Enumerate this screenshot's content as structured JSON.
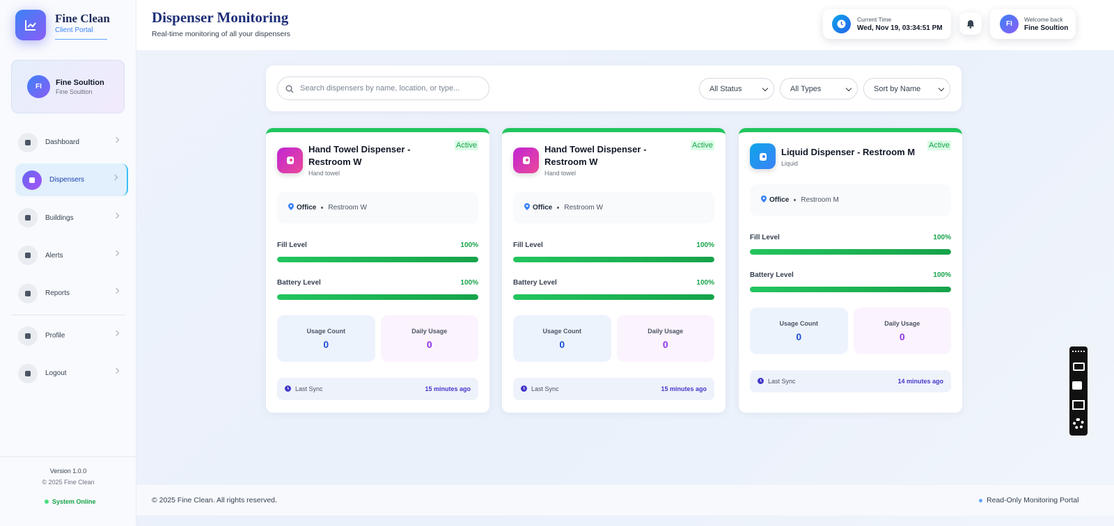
{
  "sidebar": {
    "brand": "Fine Clean",
    "brand_sub": "Client Portal",
    "user": {
      "initials": "FI",
      "name": "Fine Soultion",
      "org": "Fine Soultion"
    },
    "nav": [
      {
        "label": "Dashboard"
      },
      {
        "label": "Dispensers",
        "active": true
      },
      {
        "label": "Buildings"
      },
      {
        "label": "Alerts"
      },
      {
        "label": "Reports"
      }
    ],
    "nav_bottom": [
      {
        "label": "Profile"
      },
      {
        "label": "Logout"
      }
    ],
    "footer": {
      "version": "Version 1.0.0",
      "copyright": "© 2025 Fine Clean",
      "status": "System Online"
    }
  },
  "header": {
    "title": "Dispenser Monitoring",
    "subtitle": "Real-time monitoring of all your dispensers",
    "time_label": "Current Time",
    "time": "Wed, Nov 19, 03:34:51 PM",
    "welcome": "Welcome back",
    "user_initials": "FI",
    "user_name": "Fine Soultion"
  },
  "filters": {
    "search_placeholder": "Search dispensers by name, location, or type...",
    "status": "All Status",
    "types": "All Types",
    "sort": "Sort by Name"
  },
  "labels": {
    "fill": "Fill Level",
    "battery": "Battery Level",
    "usage": "Usage Count",
    "daily": "Daily Usage",
    "sync": "Last Sync"
  },
  "cards": [
    {
      "name": "Hand Towel Dispenser - Restroom W",
      "type": "Hand towel",
      "status": "Active",
      "building": "Office",
      "room": "Restroom W",
      "fill_level": {
        "value": 100,
        "label": "100%"
      },
      "battery_level": {
        "value": 100,
        "label": "100%"
      },
      "usage_count": 0,
      "daily_usage": 0,
      "last_sync": "15 minutes ago",
      "icon_gradient": [
        "#c026d3",
        "#ec4899"
      ]
    },
    {
      "name": "Hand Towel Dispenser - Restroom W",
      "type": "Hand towel",
      "status": "Active",
      "building": "Office",
      "room": "Restroom W",
      "fill_level": {
        "value": 100,
        "label": "100%"
      },
      "battery_level": {
        "value": 100,
        "label": "100%"
      },
      "usage_count": 0,
      "daily_usage": 0,
      "last_sync": "15 minutes ago",
      "icon_gradient": [
        "#c026d3",
        "#ec4899"
      ]
    },
    {
      "name": "Liquid Dispenser - Restroom M",
      "type": "Liquid",
      "status": "Active",
      "building": "Office",
      "room": "Restroom M",
      "fill_level": {
        "value": 100,
        "label": "100%"
      },
      "battery_level": {
        "value": 100,
        "label": "100%"
      },
      "usage_count": 0,
      "daily_usage": 0,
      "last_sync": "14 minutes ago",
      "icon_gradient": [
        "#0ea5e9",
        "#3b82f6"
      ]
    }
  ],
  "footer": {
    "copyright": "© 2025 Fine Clean. All rights reserved.",
    "mode": "Read-Only Monitoring Portal"
  }
}
